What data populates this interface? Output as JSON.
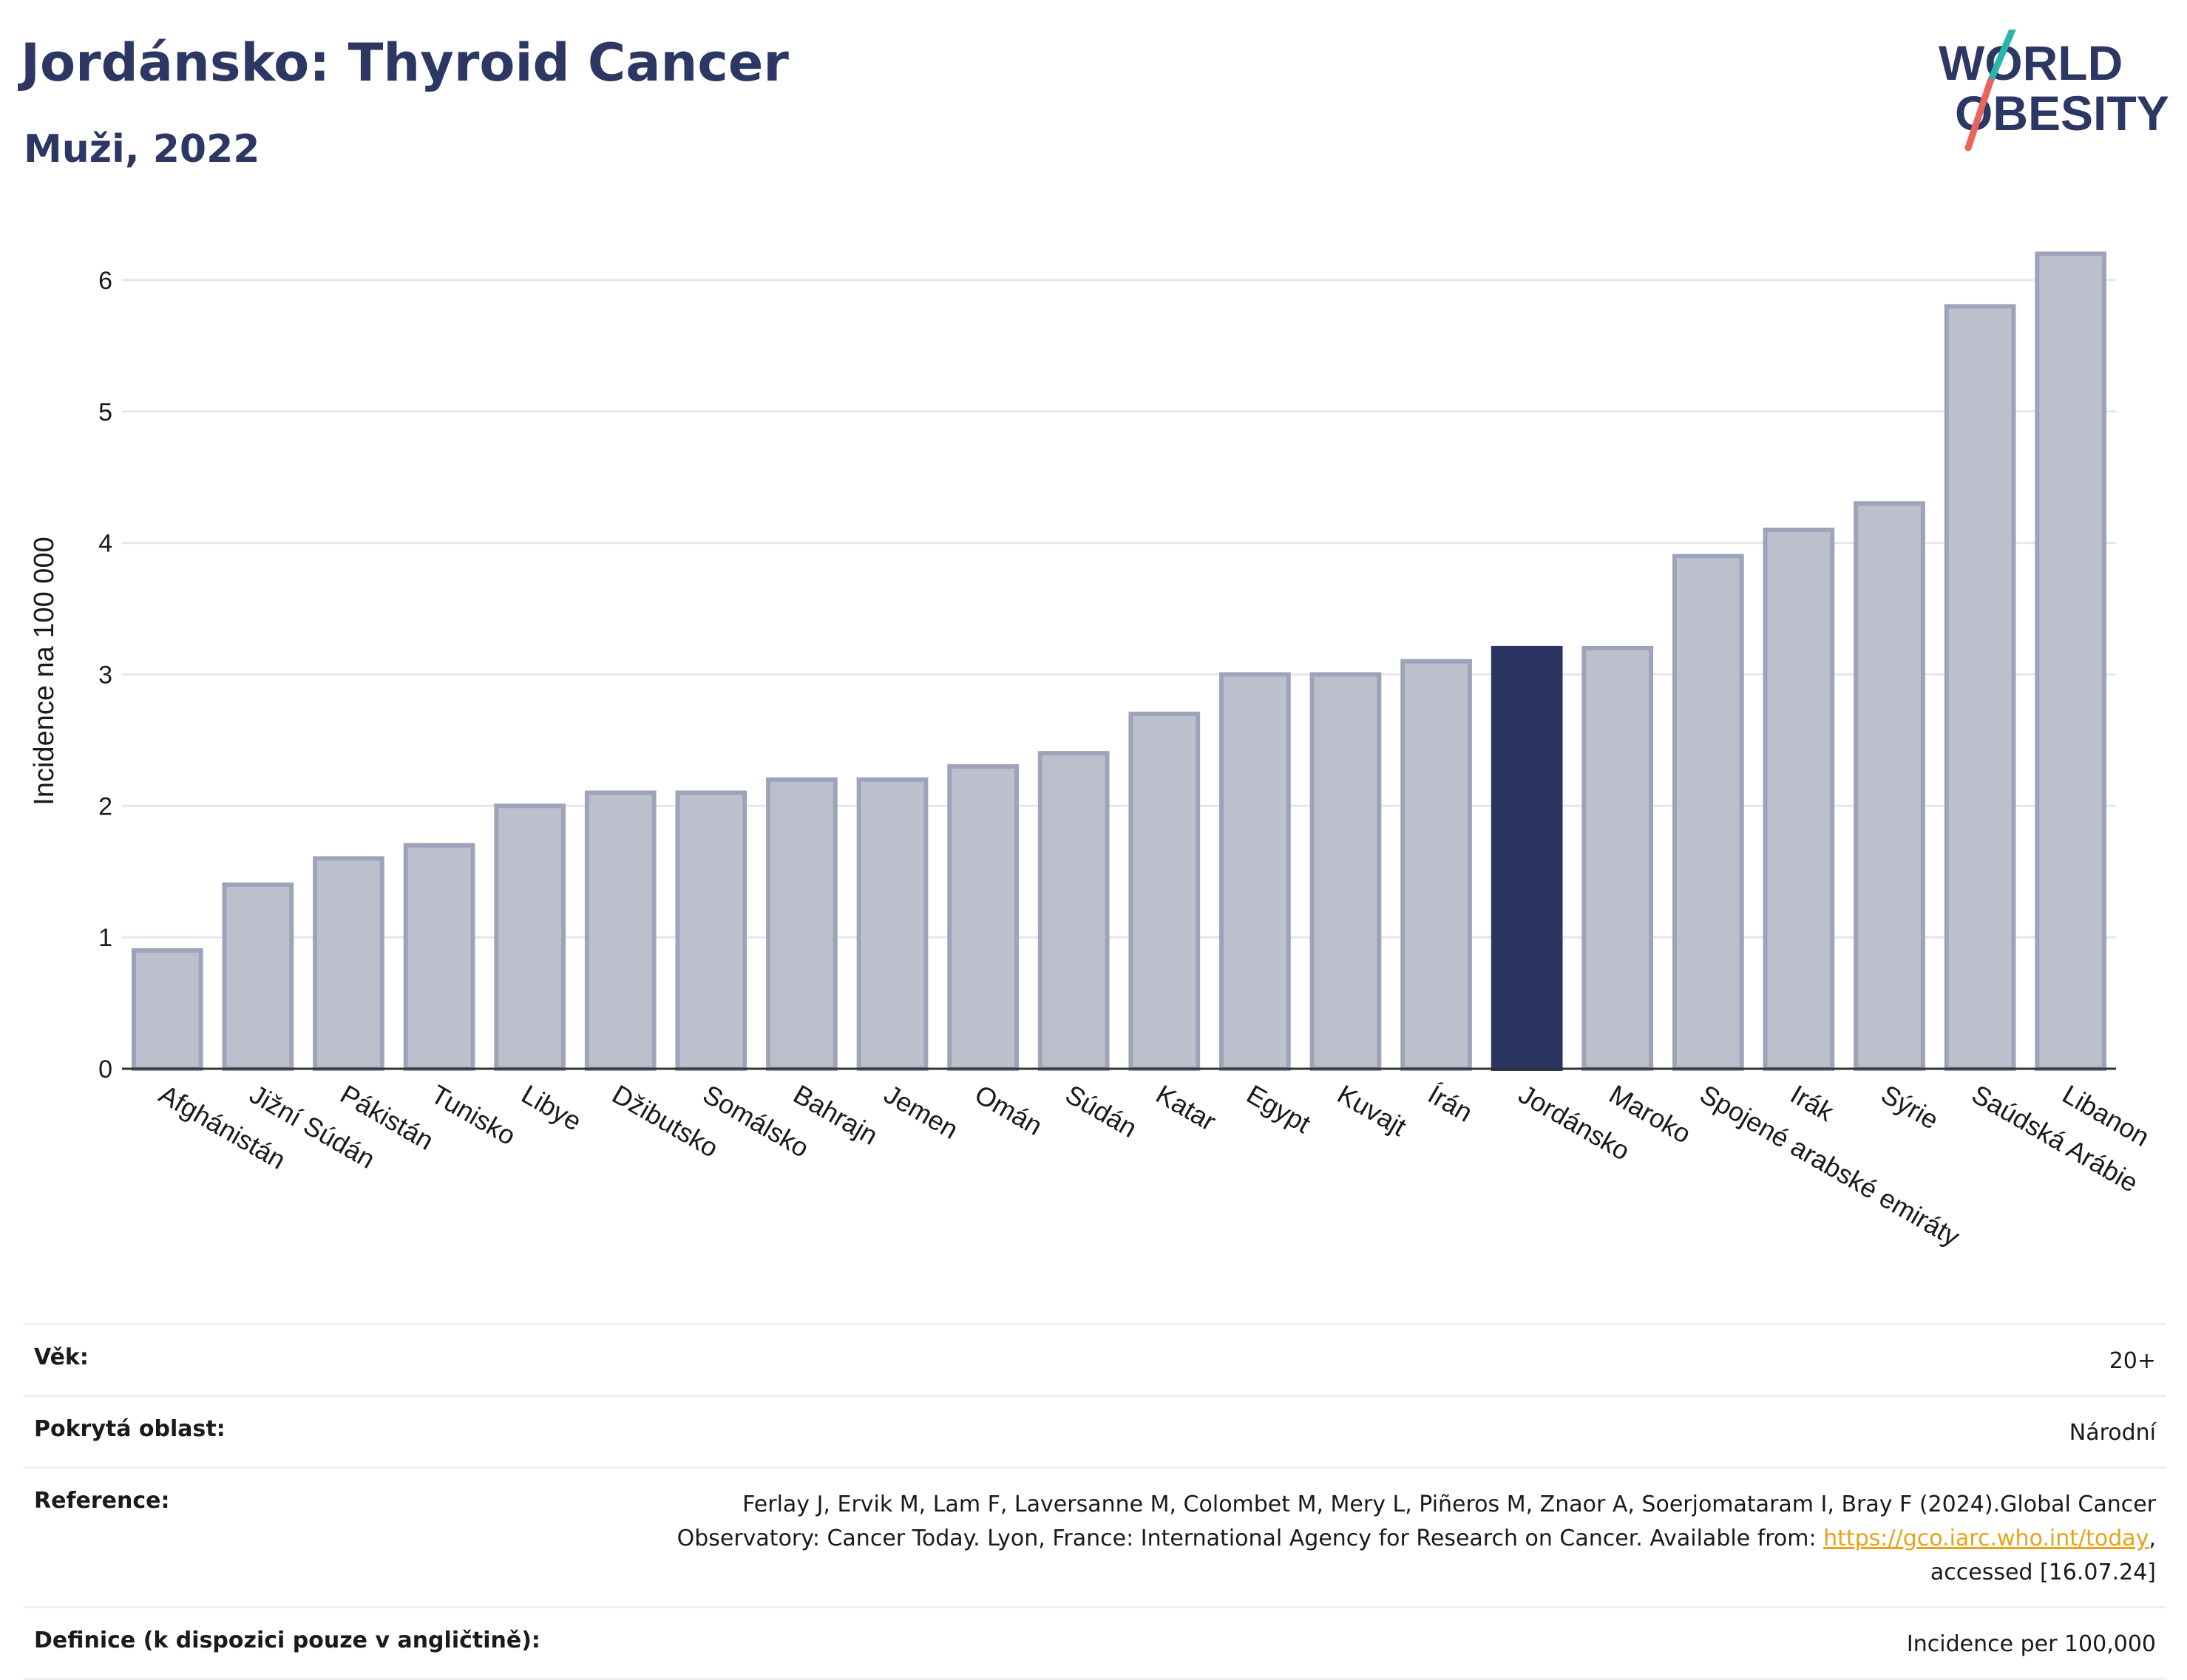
{
  "header": {
    "title": "Jordánsko: Thyroid Cancer",
    "subtitle": "Muži, 2022"
  },
  "logo": {
    "line1": "WORLD",
    "line2": "OBESITY",
    "accent_colors": [
      "#2bb5ac",
      "#e9645a"
    ]
  },
  "colors": {
    "highlight": "#2a3561",
    "bar_fill": "#bcc0cd",
    "bar_stroke": "#9ea3b9"
  },
  "chart_data": {
    "type": "bar",
    "title": "",
    "xlabel": "",
    "ylabel": "Incidence na 100 000",
    "ylim": [
      0,
      6.5
    ],
    "yticks": [
      0,
      1,
      2,
      3,
      4,
      5,
      6
    ],
    "grid": true,
    "highlight_category": "Jordánsko",
    "categories": [
      "Afghánistán",
      "Jižní Súdán",
      "Pákistán",
      "Tunisko",
      "Libye",
      "Džibutsko",
      "Somálsko",
      "Bahrajn",
      "Jemen",
      "Omán",
      "Súdán",
      "Katar",
      "Egypt",
      "Kuvajt",
      "Írán",
      "Jordánsko",
      "Maroko",
      "Spojené arabské emiráty",
      "Irák",
      "Sýrie",
      "Saúdská Arábie",
      "Libanon"
    ],
    "values": [
      0.9,
      1.4,
      1.6,
      1.7,
      2.0,
      2.1,
      2.1,
      2.2,
      2.2,
      2.3,
      2.4,
      2.7,
      3.0,
      3.0,
      3.1,
      3.2,
      3.2,
      3.9,
      4.1,
      4.3,
      5.8,
      6.2
    ]
  },
  "meta": {
    "rows": [
      {
        "label": "Věk:",
        "value": "20+"
      },
      {
        "label": "Pokrytá oblast:",
        "value": "Národní"
      },
      {
        "label": "Reference:",
        "value_line1": "Ferlay J, Ervik M, Lam F, Laversanne M, Colombet M, Mery L, Piñeros M, Znaor A, Soerjomataram I, Bray F (2024).Global Cancer",
        "value_line2_pre": "Observatory: Cancer Today. Lyon, France: International Agency for Research on Cancer. Available from: ",
        "link": "https://gco.iarc.who.int/today",
        "value_line2_post": ",",
        "value_line3": "accessed [16.07.24]"
      },
      {
        "label": "Definice (k dispozici pouze v angličtině):",
        "value": "Incidence per 100,000"
      }
    ]
  }
}
